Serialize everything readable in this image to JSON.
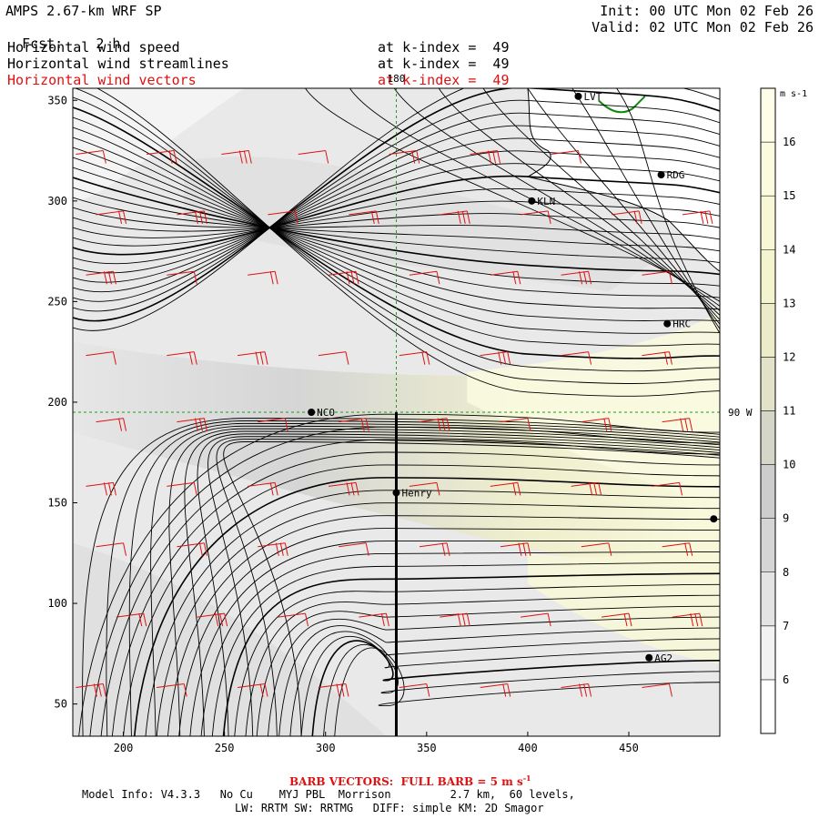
{
  "header": {
    "title": "AMPS 2.67-km WRF SP",
    "fcst_label": "Fcst:",
    "fcst_value": "2 h",
    "init": "Init: 00 UTC Mon 02 Feb 26",
    "valid": "Valid: 02 UTC Mon 02 Feb 26",
    "fields": [
      {
        "name": "Horizontal wind speed",
        "level": "at k-index =  49",
        "color": "#000000"
      },
      {
        "name": "Horizontal wind streamlines",
        "level": "at k-index =  49",
        "color": "#000000"
      },
      {
        "name": "Horizontal wind vectors",
        "level": "at k-index =  49",
        "color": "#dd1111"
      }
    ]
  },
  "map": {
    "x_ticks": [
      200,
      250,
      300,
      350,
      400,
      450
    ],
    "y_ticks": [
      50,
      100,
      150,
      200,
      250,
      300,
      350
    ],
    "xlim": [
      175,
      495
    ],
    "ylim": [
      34,
      356
    ],
    "meridian_label": "180",
    "lat_label": "90 W",
    "cross_section_x": 335,
    "stations": [
      {
        "name": "LVT",
        "x": 425,
        "y": 352
      },
      {
        "name": "RDG",
        "x": 466,
        "y": 313
      },
      {
        "name": "KLN",
        "x": 402,
        "y": 300
      },
      {
        "name": "HRC",
        "x": 469,
        "y": 239
      },
      {
        "name": "NCO",
        "x": 293,
        "y": 195
      },
      {
        "name": "Henry",
        "x": 335,
        "y": 155
      },
      {
        "name": "",
        "x": 492,
        "y": 142
      },
      {
        "name": "AG2",
        "x": 460,
        "y": 73
      }
    ]
  },
  "colorbar": {
    "units": "m s-1",
    "levels": [
      6,
      7,
      8,
      9,
      10,
      11,
      12,
      13,
      14,
      15,
      16
    ],
    "colors": [
      "#ffffff",
      "#f2f2f2",
      "#e3e3e3",
      "#d5d5d5",
      "#cdcdcd",
      "#d6d6c8",
      "#e2e2c8",
      "#ececc8",
      "#f4f4cf",
      "#f8f8d6",
      "#fbfbdf",
      "#fdfde8"
    ]
  },
  "footer": {
    "barb_note": "BARB VECTORS:  FULL BARB = 5 m s",
    "barb_exp": "-1",
    "model_line": "Model Info: V4.3.3   No Cu    MYJ PBL  Morrison         2.7 km,  60 levels,",
    "physics_line": "LW: RRTM SW: RRTMG   DIFF: simple KM: 2D Smagor"
  }
}
